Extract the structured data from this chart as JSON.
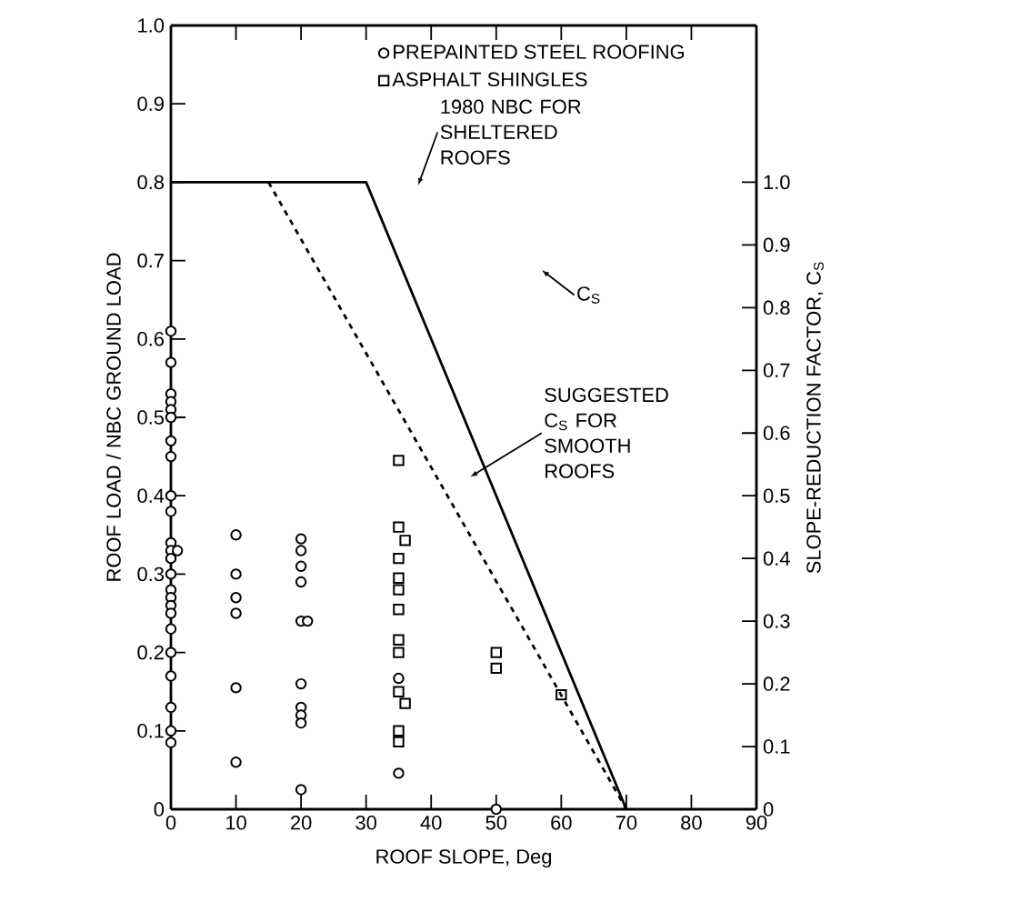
{
  "chart_data": {
    "type": "scatter",
    "xlabel": "ROOF SLOPE, Deg",
    "ylabel": "ROOF LOAD / NBC GROUND LOAD",
    "y2label": "SLOPE-REDUCTION FACTOR, C$_{S}$",
    "xlim": [
      0,
      90
    ],
    "xticks": [
      0,
      10,
      20,
      30,
      40,
      50,
      60,
      70,
      80,
      90
    ],
    "ylim": [
      0,
      1.0
    ],
    "yticks": [
      0,
      0.1,
      0.2,
      0.3,
      0.4,
      0.5,
      0.6,
      0.7,
      0.8,
      0.9,
      {
        "value": 1.0,
        "label": "1.0"
      }
    ],
    "y2lim": [
      0,
      1.25
    ],
    "y2ticks": [
      0,
      0.1,
      0.2,
      0.3,
      0.4,
      0.5,
      0.6,
      0.7,
      0.8,
      0.9,
      {
        "value": 1.0,
        "label": "1.0"
      }
    ],
    "legend": "top",
    "grid": false,
    "annotations": [
      "1980 NBC FOR SHELTERED ROOFS",
      "C$_{S}$",
      "SUGGESTED C$_{S}$ FOR SMOOTH ROOFS"
    ],
    "series": [
      {
        "name": "PREPAINTED STEEL ROOFING",
        "marker": "circle",
        "color": "#000000",
        "x": [
          0,
          0,
          0,
          0,
          0,
          0,
          0,
          0,
          0,
          0,
          0,
          0,
          0,
          0,
          0,
          0,
          0,
          0,
          0,
          0,
          0,
          0,
          0,
          0,
          1,
          10,
          10,
          10,
          10,
          10,
          10,
          20,
          20,
          20,
          20,
          20,
          21,
          20,
          20,
          20,
          20,
          20,
          35,
          35,
          50
        ],
        "values": [
          0.61,
          0.57,
          0.53,
          0.52,
          0.51,
          0.5,
          0.47,
          0.45,
          0.4,
          0.38,
          0.34,
          0.33,
          0.32,
          0.3,
          0.28,
          0.27,
          0.26,
          0.25,
          0.23,
          0.2,
          0.17,
          0.13,
          0.1,
          0.085,
          0.33,
          0.35,
          0.3,
          0.27,
          0.25,
          0.155,
          0.06,
          0.345,
          0.33,
          0.31,
          0.29,
          0.24,
          0.24,
          0.16,
          0.13,
          0.12,
          0.11,
          0.025,
          0.167,
          0.046,
          0.0
        ]
      },
      {
        "name": "ASPHALT SHINGLES",
        "marker": "square",
        "color": "#000000",
        "x": [
          35,
          35,
          36,
          35,
          35,
          35,
          35,
          35,
          35,
          35,
          36,
          35,
          35,
          50,
          50,
          60
        ],
        "values": [
          0.445,
          0.36,
          0.343,
          0.32,
          0.295,
          0.28,
          0.255,
          0.216,
          0.2,
          0.15,
          0.135,
          0.1,
          0.086,
          0.2,
          0.18,
          0.146
        ]
      },
      {
        "type": "line",
        "axis": "y2",
        "line_style": "solid",
        "color": "#000000",
        "x": [
          0,
          30,
          70
        ],
        "values": [
          1.0,
          1.0,
          0
        ]
      },
      {
        "type": "line",
        "axis": "y2",
        "line_style": "dashed",
        "color": "#000000",
        "x": [
          15,
          70
        ],
        "values": [
          1.0,
          0
        ]
      }
    ]
  }
}
